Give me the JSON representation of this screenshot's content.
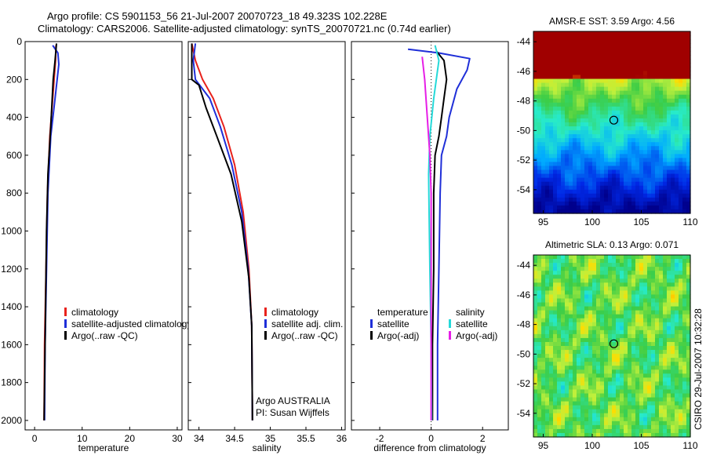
{
  "title_line1": "Argo profile: CS 5901153_56 21-Jul-2007 20070723_18 49.323S 102.228E",
  "title_line2": "Climatology: CARS2006. Satellite-adjusted climatology: synTS_20070721.nc (0.74d earlier)",
  "colors": {
    "climatology": "#e8221c",
    "satellite": "#1f2fd8",
    "argo": "#000000",
    "salinity_sat": "#25d9d9",
    "salinity_argo": "#e61ee6"
  },
  "chart_data": [
    {
      "type": "line",
      "xlabel": "temperature",
      "ylabel": "",
      "xlim": [
        -2,
        31
      ],
      "ylim": [
        2050,
        0
      ],
      "x_ticks": [
        0,
        10,
        20,
        30
      ],
      "y_ticks": [
        0,
        200,
        400,
        600,
        800,
        1000,
        1200,
        1400,
        1600,
        1800,
        2000
      ],
      "legend": [
        "climatology",
        "satellite-adjusted climatology",
        "Argo(..raw -QC)"
      ],
      "series": [
        {
          "name": "climatology",
          "color": "#e8221c",
          "points": [
            [
              4.5,
              20
            ],
            [
              4.4,
              100
            ],
            [
              3.8,
              300
            ],
            [
              3.2,
              500
            ],
            [
              2.7,
              800
            ],
            [
              2.4,
              1200
            ],
            [
              2.1,
              1600
            ],
            [
              2.0,
              2000
            ]
          ]
        },
        {
          "name": "satellite-adjusted climatology",
          "color": "#1f2fd8",
          "points": [
            [
              3.8,
              20
            ],
            [
              4.9,
              60
            ],
            [
              5.1,
              120
            ],
            [
              4.3,
              300
            ],
            [
              3.4,
              500
            ],
            [
              2.8,
              800
            ],
            [
              2.5,
              1200
            ],
            [
              2.2,
              1600
            ],
            [
              2.1,
              2000
            ]
          ]
        },
        {
          "name": "Argo(..raw -QC)",
          "color": "#000000",
          "points": [
            [
              4.6,
              10
            ],
            [
              4.3,
              100
            ],
            [
              3.9,
              200
            ],
            [
              3.4,
              450
            ],
            [
              2.8,
              700
            ],
            [
              2.5,
              1000
            ],
            [
              2.3,
              1400
            ],
            [
              2.1,
              1800
            ],
            [
              2.0,
              2000
            ]
          ]
        }
      ]
    },
    {
      "type": "line",
      "xlabel": "salinity",
      "ylabel": "",
      "xlim": [
        33.85,
        36.05
      ],
      "ylim": [
        2050,
        0
      ],
      "x_ticks": [
        34,
        34.5,
        35,
        35.5,
        36
      ],
      "legend": [
        "climatology",
        "satellite adj. clim.",
        "Argo(..raw -QC)"
      ],
      "annotations": [
        "Argo AUSTRALIA",
        "PI: Susan Wijffels"
      ],
      "series": [
        {
          "name": "climatology",
          "color": "#e8221c",
          "points": [
            [
              33.9,
              10
            ],
            [
              33.95,
              100
            ],
            [
              34.05,
              200
            ],
            [
              34.2,
              300
            ],
            [
              34.35,
              450
            ],
            [
              34.5,
              650
            ],
            [
              34.62,
              900
            ],
            [
              34.7,
              1200
            ],
            [
              34.74,
              1500
            ],
            [
              34.75,
              2000
            ]
          ]
        },
        {
          "name": "satellite adj. clim.",
          "color": "#1f2fd8",
          "points": [
            [
              33.95,
              10
            ],
            [
              33.92,
              100
            ],
            [
              33.95,
              200
            ],
            [
              34.15,
              300
            ],
            [
              34.3,
              450
            ],
            [
              34.46,
              650
            ],
            [
              34.6,
              900
            ],
            [
              34.69,
              1200
            ],
            [
              34.74,
              1500
            ],
            [
              34.75,
              2000
            ]
          ]
        },
        {
          "name": "Argo(..raw -QC)",
          "color": "#000000",
          "points": [
            [
              33.9,
              10
            ],
            [
              33.9,
              200
            ],
            [
              34.0,
              230
            ],
            [
              34.1,
              350
            ],
            [
              34.25,
              500
            ],
            [
              34.45,
              700
            ],
            [
              34.6,
              950
            ],
            [
              34.7,
              1250
            ],
            [
              34.74,
              1500
            ],
            [
              34.75,
              2000
            ]
          ]
        }
      ]
    },
    {
      "type": "line",
      "xlabel": "difference from climatology",
      "ylabel": "",
      "xlim": [
        -3.1,
        3.0
      ],
      "ylim": [
        2050,
        0
      ],
      "x_ticks": [
        -2,
        0,
        2
      ],
      "legend_columns": [
        {
          "heading": "temperature",
          "entries": [
            "satellite",
            "Argo(-adj)"
          ]
        },
        {
          "heading": "salinity",
          "entries": [
            "satellite",
            "Argo(-adj)"
          ]
        }
      ],
      "series": [
        {
          "name": "temperature satellite",
          "color": "#1f2fd8",
          "points": [
            [
              -0.9,
              40
            ],
            [
              0.3,
              60
            ],
            [
              1.5,
              90
            ],
            [
              1.4,
              150
            ],
            [
              1.0,
              250
            ],
            [
              0.7,
              400
            ],
            [
              0.6,
              500
            ],
            [
              0.4,
              600
            ],
            [
              0.35,
              800
            ],
            [
              0.3,
              1200
            ],
            [
              0.25,
              1600
            ],
            [
              0.25,
              2000
            ]
          ]
        },
        {
          "name": "temperature Argo(-adj)",
          "color": "#000000",
          "points": [
            [
              0.2,
              50
            ],
            [
              0.5,
              100
            ],
            [
              0.6,
              200
            ],
            [
              0.5,
              300
            ],
            [
              0.4,
              400
            ],
            [
              0.3,
              500
            ],
            [
              0.15,
              600
            ],
            [
              0.1,
              800
            ],
            [
              0.1,
              1200
            ],
            [
              0.05,
              1600
            ],
            [
              0.05,
              2000
            ]
          ]
        },
        {
          "name": "salinity satellite",
          "color": "#25d9d9",
          "points": [
            [
              0.15,
              20
            ],
            [
              0.3,
              100
            ],
            [
              0.1,
              300
            ],
            [
              -0.05,
              500
            ],
            [
              -0.1,
              700
            ],
            [
              -0.08,
              900
            ],
            [
              -0.05,
              1200
            ],
            [
              0.0,
              1600
            ],
            [
              0.02,
              2000
            ]
          ]
        },
        {
          "name": "salinity Argo(-adj)",
          "color": "#e61ee6",
          "points": [
            [
              -0.35,
              80
            ],
            [
              -0.25,
              200
            ],
            [
              -0.15,
              400
            ],
            [
              -0.05,
              600
            ],
            [
              0.0,
              800
            ],
            [
              0.0,
              1200
            ],
            [
              0.0,
              2000
            ]
          ]
        }
      ]
    },
    {
      "type": "heatmap",
      "title": "AMSR-E SST: 3.59 Argo: 4.56",
      "xlim": [
        94,
        110
      ],
      "ylim": [
        -55.6,
        -43.3
      ],
      "x_ticks": [
        95,
        100,
        105,
        110
      ],
      "y_ticks": [
        -44,
        -46,
        -48,
        -50,
        -52,
        -54
      ],
      "marker": {
        "lon": 102.2,
        "lat": -49.3
      }
    },
    {
      "type": "heatmap",
      "title": "Altimetric SLA: 0.13 Argo: 0.071",
      "xlim": [
        94,
        110
      ],
      "ylim": [
        -55.6,
        -43.3
      ],
      "x_ticks": [
        95,
        100,
        105,
        110
      ],
      "y_ticks": [
        -44,
        -46,
        -48,
        -50,
        -52,
        -54
      ],
      "marker": {
        "lon": 102.2,
        "lat": -49.3
      }
    }
  ],
  "credit": "CSIRO 29-Jul-2007 10:32:28"
}
